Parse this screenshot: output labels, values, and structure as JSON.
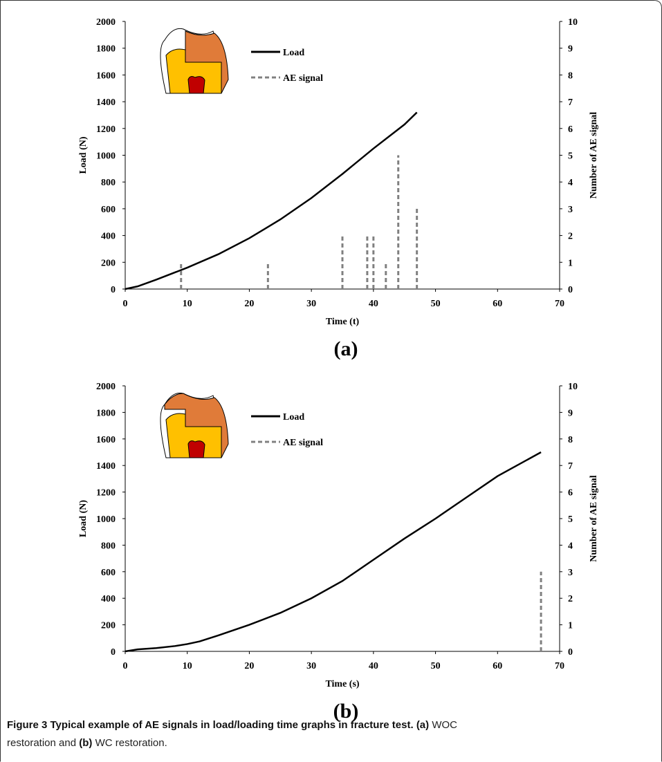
{
  "chart_data": [
    {
      "type": "line",
      "panel_label": "(a)",
      "x_label": "Time (t)",
      "y_label": "Load (N)",
      "y2_label": "Number of AE signal",
      "xlim": [
        0,
        70
      ],
      "xticks": [
        0,
        10,
        20,
        30,
        40,
        50,
        60,
        70
      ],
      "ylim": [
        0,
        2000
      ],
      "yticks": [
        0,
        200,
        400,
        600,
        800,
        1000,
        1200,
        1400,
        1600,
        1800,
        2000
      ],
      "y2lim": [
        0,
        10
      ],
      "y2ticks": [
        0,
        1,
        2,
        3,
        4,
        5,
        6,
        7,
        8,
        9,
        10
      ],
      "series": [
        {
          "name": "Load",
          "color": "#000000",
          "x": [
            0,
            2,
            5,
            10,
            15,
            20,
            25,
            30,
            35,
            40,
            45,
            47
          ],
          "values": [
            0,
            20,
            70,
            160,
            260,
            380,
            520,
            680,
            860,
            1050,
            1230,
            1320
          ]
        },
        {
          "name": "AE signal",
          "color": "#808080",
          "type": "bar",
          "dashed": true,
          "axis": "y2",
          "x": [
            9,
            23,
            35,
            39,
            40,
            42,
            44,
            47
          ],
          "values": [
            1,
            1,
            2,
            2,
            2,
            1,
            5,
            3
          ]
        }
      ]
    },
    {
      "type": "line",
      "panel_label": "(b)",
      "x_label": "Time (s)",
      "y_label": "Load (N)",
      "y2_label": "Number of AE signal",
      "xlim": [
        0,
        70
      ],
      "xticks": [
        0,
        10,
        20,
        30,
        40,
        50,
        60,
        70
      ],
      "ylim": [
        0,
        2000
      ],
      "yticks": [
        0,
        200,
        400,
        600,
        800,
        1000,
        1200,
        1400,
        1600,
        1800,
        2000
      ],
      "y2lim": [
        0,
        10
      ],
      "y2ticks": [
        0,
        1,
        2,
        3,
        4,
        5,
        6,
        7,
        8,
        9,
        10
      ],
      "series": [
        {
          "name": "Load",
          "color": "#000000",
          "x": [
            0,
            2,
            5,
            8,
            10,
            12,
            15,
            20,
            25,
            30,
            35,
            40,
            45,
            50,
            55,
            60,
            67
          ],
          "values": [
            0,
            15,
            25,
            40,
            55,
            75,
            120,
            200,
            290,
            400,
            530,
            690,
            850,
            1000,
            1160,
            1320,
            1500
          ]
        },
        {
          "name": "AE signal",
          "color": "#808080",
          "type": "bar",
          "dashed": true,
          "axis": "y2",
          "x": [
            67
          ],
          "values": [
            3
          ]
        }
      ]
    }
  ],
  "caption": {
    "title": "Figure 3 Typical example of AE signals in load/loading time graphs in fracture test.",
    "a": "(a)",
    "a_text": "WOC",
    "line2": "restoration and",
    "b": "(b)",
    "b_text": "WC restoration."
  }
}
